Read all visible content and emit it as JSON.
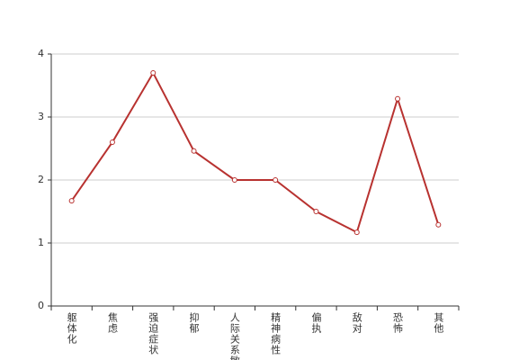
{
  "chart_data": {
    "type": "line",
    "categories": [
      "躯体化",
      "焦虑",
      "强迫症状",
      "抑郁",
      "人际关系敏感",
      "精神病性",
      "偏执",
      "敌对",
      "恐怖",
      "其他"
    ],
    "values": [
      1.67,
      2.6,
      3.7,
      2.46,
      2.0,
      2.0,
      1.5,
      1.17,
      3.29,
      1.29
    ],
    "color": "#b83230",
    "ylim": [
      0,
      4
    ],
    "yticks": [
      0,
      1,
      2,
      3,
      4
    ],
    "grid": true
  }
}
